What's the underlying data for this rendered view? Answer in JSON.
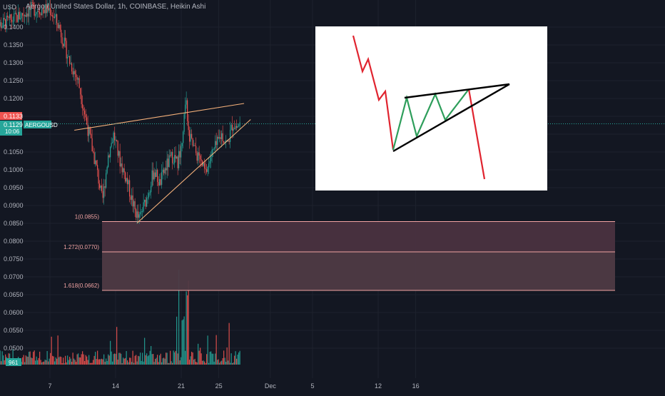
{
  "header": {
    "unit": "USD",
    "title": "Aergo / United States Dollar, 1h, COINBASE, Heikin Ashi"
  },
  "colors": {
    "background": "#131722",
    "up": "#26a69a",
    "down": "#ef5350",
    "fib_line": "#f2a3a3",
    "fib_fill": "#4e3a44",
    "trendline": "#f4b07a",
    "price_line": "#26a69a",
    "inset_bg": "#ffffff",
    "inset_red": "#e0242f",
    "inset_green": "#2e9e5b",
    "inset_black": "#000000"
  },
  "price_axis": {
    "ticks": [
      "0.1400",
      "0.1350",
      "0.1300",
      "0.1250",
      "0.1200",
      "0.1150",
      "0.1050",
      "0.1000",
      "0.0950",
      "0.0900",
      "0.0850",
      "0.0800",
      "0.0750",
      "0.0700",
      "0.0650",
      "0.0600",
      "0.0550",
      "0.0500"
    ]
  },
  "price_badges": {
    "upper": "0.1133",
    "symbol": "AERGOUSD",
    "current": "0.1129",
    "countdown": "10:06"
  },
  "volume_badge": "961",
  "time_axis": {
    "labels": [
      "7",
      "14",
      "21",
      "25",
      "Dec",
      "5",
      "12",
      "16"
    ]
  },
  "fib_levels": [
    {
      "label": "1(0.0855)",
      "value": 0.0855
    },
    {
      "label": "1.272(0.0770)",
      "value": 0.077
    },
    {
      "label": "1.618(0.0662)",
      "value": 0.0662
    }
  ],
  "chart_data": {
    "type": "candlestick",
    "symbol": "AERGOUSD",
    "title": "Aergo / United States Dollar, 1h, COINBASE, Heikin Ashi",
    "ylabel": "USD",
    "ylim": [
      0.0475,
      0.1435
    ],
    "time_labels": [
      "7",
      "14",
      "21",
      "25",
      "Dec",
      "5",
      "12",
      "16"
    ],
    "price_path": [
      [
        1,
        0.14
      ],
      [
        3,
        0.142
      ],
      [
        5,
        0.145
      ],
      [
        7,
        0.145
      ],
      [
        8,
        0.14
      ],
      [
        9,
        0.131
      ],
      [
        10,
        0.125
      ],
      [
        11,
        0.112
      ],
      [
        12,
        0.1
      ],
      [
        12.6,
        0.091
      ],
      [
        13.2,
        0.104
      ],
      [
        13.8,
        0.11
      ],
      [
        14.4,
        0.103
      ],
      [
        15.2,
        0.097
      ],
      [
        16,
        0.089
      ],
      [
        16.5,
        0.086
      ],
      [
        17.3,
        0.092
      ],
      [
        18.1,
        0.1
      ],
      [
        18.7,
        0.096
      ],
      [
        19.4,
        0.101
      ],
      [
        20.1,
        0.104
      ],
      [
        20.6,
        0.102
      ],
      [
        21.1,
        0.108
      ],
      [
        21.5,
        0.119
      ],
      [
        21.9,
        0.109
      ],
      [
        22.5,
        0.105
      ],
      [
        23.1,
        0.102
      ],
      [
        23.6,
        0.099
      ],
      [
        24.2,
        0.104
      ],
      [
        24.8,
        0.107
      ],
      [
        25.3,
        0.11
      ],
      [
        25.9,
        0.107
      ],
      [
        26.5,
        0.113
      ],
      [
        26.9,
        0.112
      ],
      [
        27.3,
        0.1129
      ]
    ],
    "trendlines": [
      {
        "from": [
          9.6,
          0.1111
        ],
        "to": [
          27.7,
          0.1186
        ]
      },
      {
        "from": [
          16.3,
          0.0851
        ],
        "to": [
          28.4,
          0.1141
        ]
      }
    ],
    "fib_levels": [
      1,
      1.272,
      1.618
    ],
    "fib_values": [
      0.0855,
      0.077,
      0.0662
    ],
    "current_price": 0.1129
  }
}
